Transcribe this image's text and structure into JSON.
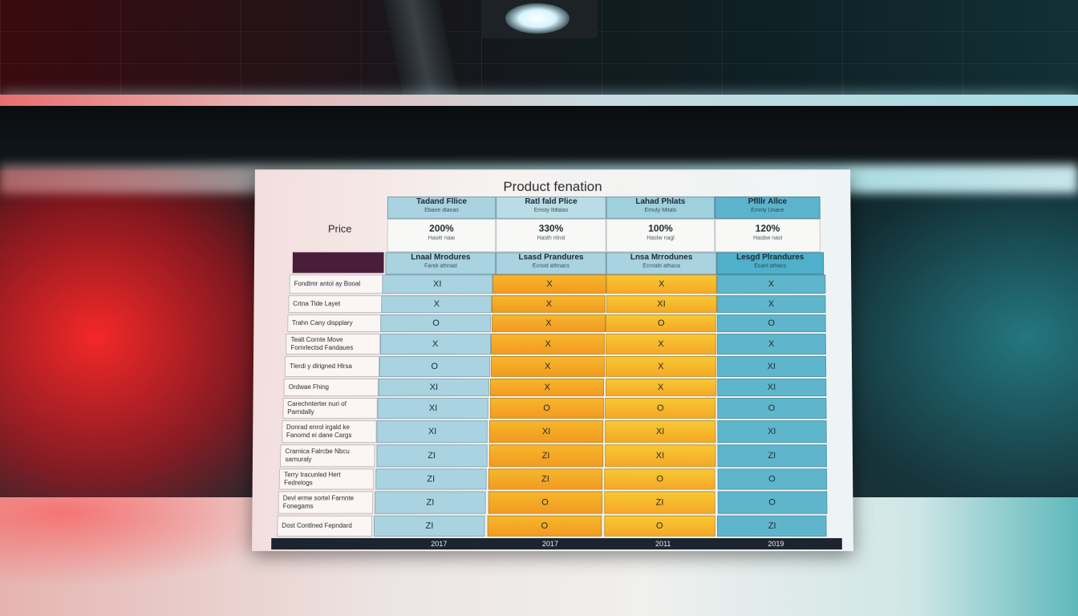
{
  "board": {
    "title": "Product fenation",
    "price_label": "Price",
    "plans": [
      {
        "name": "Tadand Fllice",
        "sub": "Ebane dlanas",
        "price": "200%",
        "price_sub": "Hasitr naai",
        "feature_head": "Lnaal Mrodures",
        "feature_sub": "Fandi athnad",
        "year": "2017",
        "color": "#a9d3e0"
      },
      {
        "name": "Ratl fald Plice",
        "sub": "Emsty lldlalas",
        "price": "330%",
        "price_sub": "Hasth ntnsl",
        "feature_head": "Lsasd Prandures",
        "feature_sub": "Ecnod athnacs",
        "year": "2017",
        "color": "#f4a826"
      },
      {
        "name": "Lahad Phlats",
        "sub": "Emuty Mitals",
        "price": "100%",
        "price_sub": "Hastw nagl",
        "feature_head": "Lnsa Mrrodunes",
        "feature_sub": "Ecnrabl athaca",
        "year": "2011",
        "color": "#f7bf2e"
      },
      {
        "name": "Pflllr Allce",
        "sub": "Emnly Unace",
        "price": "120%",
        "price_sub": "Hasbw nasl",
        "feature_head": "Lesgd Plrandures",
        "feature_sub": "Ecanl athacs",
        "year": "2019",
        "color": "#5fb6cc"
      }
    ],
    "rows": [
      {
        "label": "Fondtmr antol ay Booal",
        "values": [
          "XI",
          "X",
          "X",
          "X"
        ]
      },
      {
        "label": "Crtna Tlde Layet",
        "values": [
          "X",
          "X",
          "XI",
          "X"
        ]
      },
      {
        "label": "Trahn Cany dispplary",
        "values": [
          "O",
          "X",
          "O",
          "O"
        ]
      },
      {
        "label": "Tealt Cornte Move Fornrlectsd Fandaues",
        "values": [
          "X",
          "X",
          "X",
          "X"
        ]
      },
      {
        "label": "Tlerdi y dlrigned Hlrsa",
        "values": [
          "O",
          "X",
          "X",
          "XI"
        ]
      },
      {
        "label": "Ordwae Fhing",
        "values": [
          "XI",
          "X",
          "X",
          "XI"
        ]
      },
      {
        "label": "Carechnterter nuri of Parndally",
        "values": [
          "XI",
          "O",
          "O",
          "O"
        ]
      },
      {
        "label": "Donrad enrol irgald ke Fanomd ei dane Cargs",
        "values": [
          "XI",
          "XI",
          "XI",
          "XI"
        ]
      },
      {
        "label": "Crarnica Falrcbe Nbcu sarnuraly",
        "values": [
          "ZI",
          "ZI",
          "XI",
          "ZI"
        ]
      },
      {
        "label": "Terry Iracunled Hert Fedrelogs",
        "values": [
          "ZI",
          "ZI",
          "O",
          "O"
        ]
      },
      {
        "label": "Devl erme sortel Farnnte Fonegams",
        "values": [
          "ZI",
          "O",
          "ZI",
          "O"
        ]
      },
      {
        "label": "Dost Contlned Fepndard",
        "values": [
          "ZI",
          "O",
          "O",
          "ZI"
        ]
      }
    ]
  }
}
